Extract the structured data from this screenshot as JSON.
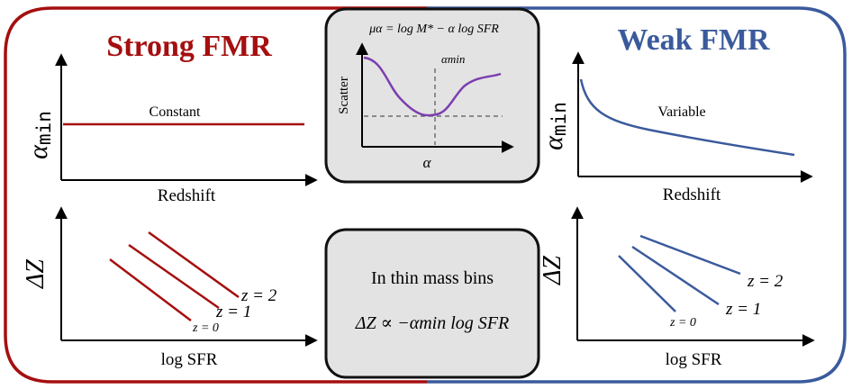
{
  "colors": {
    "strong": "#a50f0f",
    "weak": "#3a5a9c",
    "curve": "#7b3fb0",
    "box_fill": "#e3e3e3",
    "box_stroke": "#111111",
    "axis": "#000000"
  },
  "left": {
    "title": "Strong FMR",
    "top_plot": {
      "ylabel_symbol": "α",
      "ylabel_sub": "min",
      "xlabel": "Redshift",
      "annotation": "Constant"
    },
    "bottom_plot": {
      "ylabel": "ΔZ",
      "xlabel": "log SFR",
      "line_labels": [
        "z = 2",
        "z = 1",
        "z = 0"
      ]
    }
  },
  "right": {
    "title": "Weak FMR",
    "top_plot": {
      "ylabel_symbol": "α",
      "ylabel_sub": "min",
      "xlabel": "Redshift",
      "annotation": "Variable"
    },
    "bottom_plot": {
      "ylabel": "ΔZ",
      "xlabel": "log SFR",
      "line_labels": [
        "z = 2",
        "z = 1",
        "z = 0"
      ]
    }
  },
  "center_top": {
    "equation": "μα = log M* − α log SFR",
    "ylabel": "Scatter",
    "xlabel": "α",
    "marker_label": "αmin"
  },
  "center_bottom": {
    "line1": "In thin mass bins",
    "line2": "ΔZ ∝ −αmin log SFR"
  }
}
